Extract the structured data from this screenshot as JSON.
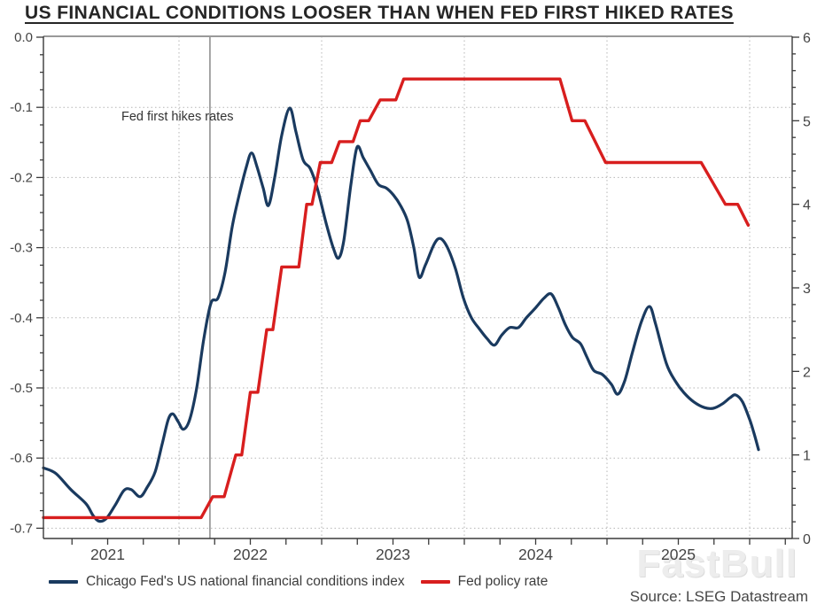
{
  "title": "US FINANCIAL CONDITIONS LOOSER THAN WHEN FED FIRST HIKED RATES",
  "source": "Source: LSEG Datastream",
  "watermark": "FastBull",
  "legend": {
    "items": [
      {
        "label": "Chicago Fed's US national financial conditions index",
        "color": "#1a3a5f"
      },
      {
        "label": "Fed policy rate",
        "color": "#d81e1e"
      }
    ]
  },
  "colors": {
    "nfci_line": "#1a3a5f",
    "fed_rate_line": "#d81e1e",
    "grid": "#b5b5b5",
    "axis": "#3a3a3a",
    "top_frame": "#999999",
    "event_line": "#777777",
    "tick_label": "#444444"
  },
  "chart_data": {
    "type": "line",
    "title": "US FINANCIAL CONDITIONS LOOSER THAN WHEN FED FIRST HIKED RATES",
    "x_axis": {
      "year_labels": [
        "2021",
        "2022",
        "2023",
        "2024",
        "2025"
      ],
      "year_label_positions": [
        2021.5,
        2022.5,
        2023.5,
        2024.5,
        2025.5
      ],
      "year_gridlines": [
        2022,
        2023,
        2024,
        2025,
        2026
      ],
      "range": [
        2021.05,
        2026.3
      ],
      "quarter_tick_start": 2021.25,
      "quarter_tick_step": 0.25
    },
    "y_left": {
      "label_for": "Chicago Fed's US national financial conditions index",
      "ticks": [
        0.0,
        -0.1,
        -0.2,
        -0.3,
        -0.4,
        -0.5,
        -0.6,
        -0.7
      ],
      "tick_labels": [
        "0.0",
        "-0.1",
        "-0.2",
        "-0.3",
        "-0.4",
        "-0.5",
        "-0.6",
        "-0.7"
      ],
      "minor_step": 0.025,
      "min": -0.7177,
      "max": 0.0,
      "grid": true
    },
    "y_right": {
      "label_for": "Fed policy rate",
      "ticks": [
        6,
        5,
        4,
        3,
        2,
        1,
        0
      ],
      "tick_labels": [
        "6",
        "5",
        "4",
        "3",
        "2",
        "1",
        "0"
      ],
      "minor_step": 0.2,
      "min": 0.0,
      "max": 6.0,
      "grid": false
    },
    "event_line": {
      "t": 2022.217,
      "label": "Fed first hikes rates"
    },
    "series": [
      {
        "name": "Chicago Fed's US national financial conditions index",
        "axis": "left",
        "smooth": true,
        "color": "#1a3a5f",
        "width": 3.2,
        "points": [
          [
            2021.05,
            -0.614
          ],
          [
            2021.137,
            -0.622
          ],
          [
            2021.242,
            -0.645
          ],
          [
            2021.348,
            -0.665
          ],
          [
            2021.398,
            -0.682
          ],
          [
            2021.441,
            -0.69
          ],
          [
            2021.491,
            -0.686
          ],
          [
            2021.553,
            -0.667
          ],
          [
            2021.615,
            -0.646
          ],
          [
            2021.665,
            -0.645
          ],
          [
            2021.727,
            -0.655
          ],
          [
            2021.776,
            -0.642
          ],
          [
            2021.832,
            -0.62
          ],
          [
            2021.882,
            -0.58
          ],
          [
            2021.925,
            -0.545
          ],
          [
            2021.957,
            -0.537
          ],
          [
            2021.994,
            -0.548
          ],
          [
            2022.031,
            -0.559
          ],
          [
            2022.075,
            -0.545
          ],
          [
            2022.124,
            -0.5
          ],
          [
            2022.174,
            -0.43
          ],
          [
            2022.224,
            -0.379
          ],
          [
            2022.273,
            -0.372
          ],
          [
            2022.323,
            -0.335
          ],
          [
            2022.373,
            -0.27
          ],
          [
            2022.422,
            -0.225
          ],
          [
            2022.472,
            -0.185
          ],
          [
            2022.509,
            -0.165
          ],
          [
            2022.547,
            -0.185
          ],
          [
            2022.59,
            -0.215
          ],
          [
            2022.627,
            -0.24
          ],
          [
            2022.671,
            -0.2
          ],
          [
            2022.72,
            -0.14
          ],
          [
            2022.776,
            -0.101
          ],
          [
            2022.82,
            -0.135
          ],
          [
            2022.87,
            -0.175
          ],
          [
            2022.919,
            -0.187
          ],
          [
            2022.969,
            -0.215
          ],
          [
            2023.031,
            -0.265
          ],
          [
            2023.081,
            -0.3
          ],
          [
            2023.118,
            -0.315
          ],
          [
            2023.155,
            -0.29
          ],
          [
            2023.205,
            -0.21
          ],
          [
            2023.248,
            -0.157
          ],
          [
            2023.292,
            -0.172
          ],
          [
            2023.342,
            -0.19
          ],
          [
            2023.398,
            -0.21
          ],
          [
            2023.453,
            -0.215
          ],
          [
            2023.503,
            -0.225
          ],
          [
            2023.553,
            -0.24
          ],
          [
            2023.602,
            -0.262
          ],
          [
            2023.646,
            -0.3
          ],
          [
            2023.683,
            -0.342
          ],
          [
            2023.727,
            -0.325
          ],
          [
            2023.789,
            -0.295
          ],
          [
            2023.832,
            -0.287
          ],
          [
            2023.882,
            -0.3
          ],
          [
            2023.938,
            -0.33
          ],
          [
            2023.994,
            -0.372
          ],
          [
            2024.05,
            -0.4
          ],
          [
            2024.106,
            -0.416
          ],
          [
            2024.161,
            -0.43
          ],
          [
            2024.211,
            -0.439
          ],
          [
            2024.261,
            -0.425
          ],
          [
            2024.317,
            -0.414
          ],
          [
            2024.379,
            -0.414
          ],
          [
            2024.435,
            -0.4
          ],
          [
            2024.503,
            -0.385
          ],
          [
            2024.559,
            -0.372
          ],
          [
            2024.609,
            -0.366
          ],
          [
            2024.658,
            -0.385
          ],
          [
            2024.708,
            -0.41
          ],
          [
            2024.758,
            -0.428
          ],
          [
            2024.814,
            -0.437
          ],
          [
            2024.857,
            -0.455
          ],
          [
            2024.907,
            -0.475
          ],
          [
            2024.969,
            -0.481
          ],
          [
            2025.031,
            -0.495
          ],
          [
            2025.075,
            -0.509
          ],
          [
            2025.124,
            -0.49
          ],
          [
            2025.18,
            -0.448
          ],
          [
            2025.242,
            -0.405
          ],
          [
            2025.298,
            -0.384
          ],
          [
            2025.342,
            -0.41
          ],
          [
            2025.416,
            -0.465
          ],
          [
            2025.478,
            -0.49
          ],
          [
            2025.54,
            -0.507
          ],
          [
            2025.609,
            -0.52
          ],
          [
            2025.683,
            -0.528
          ],
          [
            2025.745,
            -0.529
          ],
          [
            2025.807,
            -0.523
          ],
          [
            2025.863,
            -0.514
          ],
          [
            2025.901,
            -0.51
          ],
          [
            2025.95,
            -0.52
          ],
          [
            2026.0,
            -0.545
          ],
          [
            2026.031,
            -0.565
          ],
          [
            2026.062,
            -0.588
          ]
        ]
      },
      {
        "name": "Fed policy rate",
        "axis": "right",
        "smooth": false,
        "color": "#d81e1e",
        "width": 3.4,
        "points": [
          [
            2021.05,
            0.25
          ],
          [
            2022.155,
            0.25
          ],
          [
            2022.236,
            0.5
          ],
          [
            2022.317,
            0.5
          ],
          [
            2022.398,
            1.0
          ],
          [
            2022.44,
            1.0
          ],
          [
            2022.5,
            1.75
          ],
          [
            2022.553,
            1.75
          ],
          [
            2022.615,
            2.5
          ],
          [
            2022.658,
            2.5
          ],
          [
            2022.72,
            3.25
          ],
          [
            2022.84,
            3.25
          ],
          [
            2022.895,
            4.0
          ],
          [
            2022.932,
            4.0
          ],
          [
            2022.99,
            4.5
          ],
          [
            2023.07,
            4.5
          ],
          [
            2023.125,
            4.75
          ],
          [
            2023.22,
            4.75
          ],
          [
            2023.27,
            5.0
          ],
          [
            2023.33,
            5.0
          ],
          [
            2023.41,
            5.25
          ],
          [
            2023.52,
            5.25
          ],
          [
            2023.575,
            5.5
          ],
          [
            2024.67,
            5.5
          ],
          [
            2024.755,
            5.0
          ],
          [
            2024.845,
            5.0
          ],
          [
            2024.99,
            4.5
          ],
          [
            2025.66,
            4.5
          ],
          [
            2025.83,
            4.0
          ],
          [
            2025.917,
            4.0
          ],
          [
            2025.99,
            3.75
          ]
        ]
      }
    ]
  }
}
